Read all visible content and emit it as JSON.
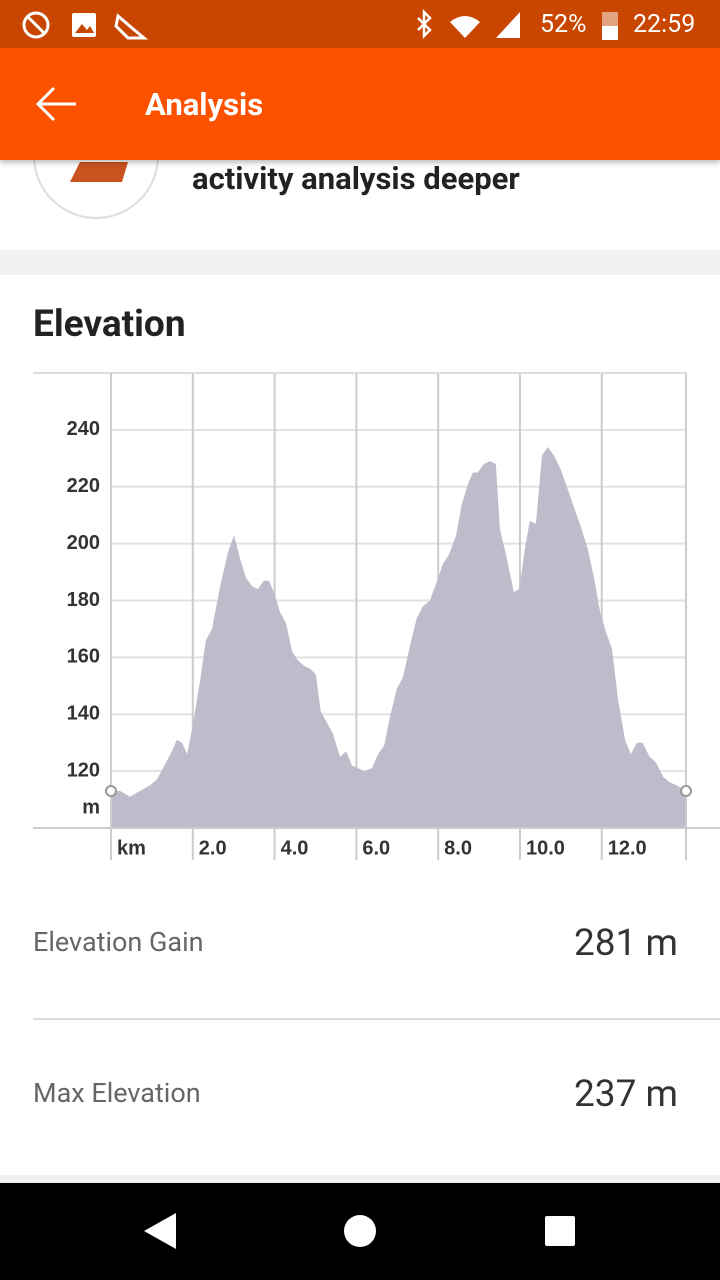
{
  "status_bar": {
    "battery": "52%",
    "time": "22:59"
  },
  "app_bar": {
    "title": "Analysis"
  },
  "card": {
    "text": "activity analysis deeper"
  },
  "section": {
    "title": "Elevation"
  },
  "chart_data": {
    "type": "area",
    "xlabel": "km",
    "ylabel": "m",
    "color": "#bcbccb",
    "grid": true,
    "x": [
      0,
      0.22,
      0.46,
      0.71,
      0.95,
      1.12,
      1.27,
      1.49,
      1.61,
      1.74,
      1.86,
      2.0,
      2.18,
      2.32,
      2.47,
      2.67,
      2.86,
      3.01,
      3.15,
      3.3,
      3.45,
      3.59,
      3.74,
      3.86,
      4.01,
      4.13,
      4.28,
      4.43,
      4.57,
      4.72,
      4.87,
      5.01,
      5.13,
      5.28,
      5.43,
      5.6,
      5.75,
      5.89,
      6.04,
      6.19,
      6.38,
      6.53,
      6.68,
      6.82,
      6.99,
      7.14,
      7.31,
      7.48,
      7.63,
      7.8,
      7.95,
      8.12,
      8.26,
      8.44,
      8.58,
      8.73,
      8.85,
      8.97,
      9.12,
      9.27,
      9.41,
      9.51,
      9.66,
      9.85,
      9.98,
      10.12,
      10.24,
      10.39,
      10.54,
      10.68,
      10.83,
      11.0,
      11.17,
      11.34,
      11.51,
      11.66,
      11.81,
      11.96,
      12.1,
      12.25,
      12.4,
      12.57,
      12.71,
      12.86,
      13.0,
      13.17,
      13.33,
      13.5,
      13.67,
      13.84,
      14.06
    ],
    "values": [
      113,
      113,
      111,
      113,
      115,
      117,
      121,
      127,
      131,
      130,
      126,
      136,
      152,
      166,
      170,
      185,
      197,
      203,
      195,
      188,
      185,
      184,
      187,
      187,
      182,
      176,
      172,
      162,
      159,
      157,
      156,
      154,
      141,
      137,
      133,
      125,
      127,
      122,
      121,
      120,
      121,
      126,
      129,
      139,
      149,
      153,
      164,
      174,
      178,
      180,
      186,
      193,
      196,
      203,
      214,
      221,
      225,
      225,
      228,
      229,
      228,
      205,
      196,
      183,
      184,
      198,
      208,
      207,
      231,
      234,
      231,
      226,
      219,
      212,
      205,
      198,
      188,
      176,
      169,
      163,
      145,
      131,
      126,
      130,
      130,
      125,
      123,
      118,
      116,
      115,
      113
    ],
    "xlim": [
      0,
      14.06
    ],
    "ylim": [
      100,
      260
    ],
    "xticks": [
      {
        "value": 2,
        "label": "2.0"
      },
      {
        "value": 4,
        "label": "4.0"
      },
      {
        "value": 6,
        "label": "6.0"
      },
      {
        "value": 8,
        "label": "8.0"
      },
      {
        "value": 10,
        "label": "10.0"
      },
      {
        "value": 12,
        "label": "12.0"
      }
    ],
    "yticks": [
      120,
      140,
      160,
      180,
      200,
      220,
      240
    ]
  },
  "stats": [
    {
      "label": "Elevation Gain",
      "value": "281 m"
    },
    {
      "label": "Max Elevation",
      "value": "237 m"
    }
  ]
}
